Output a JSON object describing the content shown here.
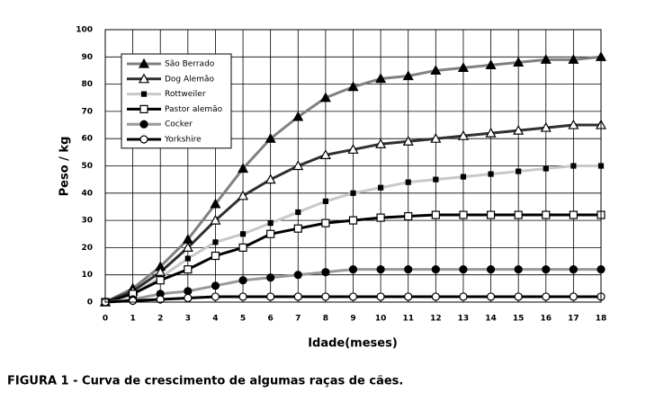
{
  "chart_data": {
    "type": "line",
    "ylabel": "Peso / kg",
    "xlabel": "Idade(meses)",
    "caption": "FIGURA 1 - Curva de crescimento de algumas raças de cães.",
    "x": [
      0,
      1,
      2,
      3,
      4,
      5,
      6,
      7,
      8,
      9,
      10,
      11,
      12,
      13,
      14,
      15,
      16,
      17,
      18
    ],
    "xlim": [
      0,
      18
    ],
    "xticks": [
      0,
      1,
      2,
      3,
      4,
      5,
      6,
      7,
      8,
      9,
      10,
      11,
      12,
      13,
      14,
      15,
      16,
      17,
      18
    ],
    "ylim": [
      0,
      100
    ],
    "yticks": [
      0,
      10,
      20,
      30,
      40,
      50,
      60,
      70,
      80,
      90,
      100
    ],
    "grid": true,
    "legend": "upper left",
    "series": [
      {
        "name": "São Berrado",
        "color": "#808080",
        "marker": "triangle",
        "marker_fill": "#000000",
        "values": [
          0,
          5,
          13,
          23,
          36,
          49,
          60,
          68,
          75,
          79,
          82,
          83,
          85,
          86,
          87,
          88,
          89,
          89,
          90
        ]
      },
      {
        "name": "Dog Alemão",
        "color": "#303030",
        "marker": "triangle",
        "marker_fill": "#ffffff",
        "values": [
          0,
          4,
          11,
          20,
          30,
          39,
          45,
          50,
          54,
          56,
          58,
          59,
          60,
          61,
          62,
          63,
          64,
          65,
          65
        ]
      },
      {
        "name": "Rottweiler",
        "color": "#c8c8c8",
        "marker": "smallsquare",
        "marker_fill": "#000000",
        "values": [
          0,
          3,
          9,
          16,
          22,
          25,
          29,
          33,
          37,
          40,
          42,
          44,
          45,
          46,
          47,
          48,
          49,
          50,
          50
        ]
      },
      {
        "name": "Pastor alemão",
        "color": "#000000",
        "marker": "square",
        "marker_fill": "#ffffff",
        "values": [
          0,
          3,
          8,
          12,
          17,
          20,
          25,
          27,
          29,
          30,
          31,
          31.5,
          32,
          32,
          32,
          32,
          32,
          32,
          32
        ]
      },
      {
        "name": "Cocker",
        "color": "#999999",
        "marker": "circle",
        "marker_fill": "#000000",
        "values": [
          0,
          1,
          3,
          4,
          6,
          8,
          9,
          10,
          11,
          12,
          12,
          12,
          12,
          12,
          12,
          12,
          12,
          12,
          12
        ]
      },
      {
        "name": "Yorkshire",
        "color": "#000000",
        "marker": "circle",
        "marker_fill": "#ffffff",
        "values": [
          0,
          0.5,
          1,
          1.5,
          2,
          2,
          2,
          2,
          2,
          2,
          2,
          2,
          2,
          2,
          2,
          2,
          2,
          2,
          2
        ]
      }
    ]
  }
}
